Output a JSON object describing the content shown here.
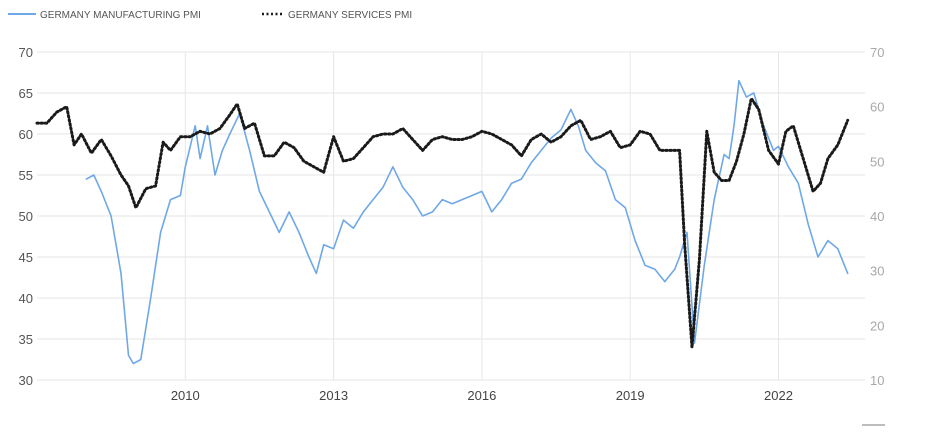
{
  "chart_data": {
    "type": "line",
    "legend": {
      "placement": "top-left",
      "items": [
        {
          "label": "GERMANY MANUFACTURING PMI",
          "color": "#6fa8e8",
          "style": "solid"
        },
        {
          "label": "GERMANY SERVICES PMI",
          "color": "#1a1a1a",
          "style": "dotted"
        }
      ]
    },
    "x_ticks": [
      "2010",
      "2013",
      "2016",
      "2019",
      "2022"
    ],
    "xlim": [
      2007.0,
      2023.75
    ],
    "y_left": {
      "ticks": [
        "70",
        "65",
        "60",
        "55",
        "50",
        "45",
        "40",
        "35",
        "30"
      ],
      "range": [
        30,
        70
      ]
    },
    "y_right": {
      "ticks": [
        "70",
        "60",
        "50",
        "40",
        "30",
        "20",
        "10"
      ],
      "range": [
        10,
        70
      ]
    },
    "grid": "horizontal",
    "series": [
      {
        "name": "GERMANY MANUFACTURING PMI",
        "axis": "left",
        "color": "#6fa8e8",
        "style": "solid",
        "x": [
          2008.0,
          2008.15,
          2008.3,
          2008.5,
          2008.7,
          2008.85,
          2008.95,
          2009.1,
          2009.3,
          2009.5,
          2009.7,
          2009.9,
          2010.0,
          2010.2,
          2010.3,
          2010.45,
          2010.6,
          2010.75,
          2010.9,
          2011.1,
          2011.3,
          2011.5,
          2011.7,
          2011.9,
          2012.1,
          2012.3,
          2012.5,
          2012.65,
          2012.8,
          2013.0,
          2013.2,
          2013.4,
          2013.6,
          2013.8,
          2014.0,
          2014.2,
          2014.4,
          2014.6,
          2014.8,
          2015.0,
          2015.2,
          2015.4,
          2015.6,
          2015.8,
          2016.0,
          2016.2,
          2016.4,
          2016.6,
          2016.8,
          2017.0,
          2017.2,
          2017.4,
          2017.6,
          2017.8,
          2017.95,
          2018.1,
          2018.3,
          2018.5,
          2018.7,
          2018.9,
          2019.1,
          2019.3,
          2019.5,
          2019.7,
          2019.9,
          2020.0,
          2020.15,
          2020.3,
          2020.5,
          2020.7,
          2020.9,
          2021.0,
          2021.1,
          2021.2,
          2021.35,
          2021.5,
          2021.7,
          2021.9,
          2022.0,
          2022.2,
          2022.4,
          2022.6,
          2022.8,
          2023.0,
          2023.2,
          2023.4
        ],
        "y": [
          54.5,
          55.0,
          53.0,
          50.0,
          43.0,
          33.0,
          32.0,
          32.5,
          40.0,
          48.0,
          52.0,
          52.5,
          56.0,
          61.0,
          57.0,
          61.0,
          55.0,
          58.0,
          60.0,
          62.5,
          58.0,
          53.0,
          50.5,
          48.0,
          50.5,
          48.0,
          45.0,
          43.0,
          46.5,
          46.0,
          49.5,
          48.5,
          50.5,
          52.0,
          53.5,
          56.0,
          53.5,
          52.0,
          50.0,
          50.5,
          52.0,
          51.5,
          52.0,
          52.5,
          53.0,
          50.5,
          52.0,
          54.0,
          54.5,
          56.5,
          58.0,
          59.5,
          60.5,
          63.0,
          61.0,
          58.0,
          56.5,
          55.5,
          52.0,
          51.0,
          47.0,
          44.0,
          43.5,
          42.0,
          43.5,
          45.0,
          48.0,
          34.5,
          44.0,
          52.0,
          57.5,
          57.0,
          61.0,
          66.5,
          64.5,
          65.0,
          61.0,
          58.0,
          58.5,
          56.0,
          54.0,
          49.0,
          45.0,
          47.0,
          46.0,
          43.0
        ]
      },
      {
        "name": "GERMANY SERVICES PMI",
        "axis": "right",
        "color": "#1a1a1a",
        "style": "dotted",
        "x": [
          2007.0,
          2007.2,
          2007.4,
          2007.6,
          2007.75,
          2007.9,
          2008.1,
          2008.3,
          2008.5,
          2008.7,
          2008.85,
          2009.0,
          2009.2,
          2009.4,
          2009.55,
          2009.7,
          2009.9,
          2010.1,
          2010.3,
          2010.5,
          2010.7,
          2010.9,
          2011.05,
          2011.2,
          2011.4,
          2011.6,
          2011.8,
          2012.0,
          2012.2,
          2012.4,
          2012.6,
          2012.8,
          2013.0,
          2013.2,
          2013.4,
          2013.6,
          2013.8,
          2014.0,
          2014.2,
          2014.4,
          2014.6,
          2014.8,
          2015.0,
          2015.2,
          2015.4,
          2015.6,
          2015.8,
          2016.0,
          2016.2,
          2016.4,
          2016.6,
          2016.8,
          2017.0,
          2017.2,
          2017.4,
          2017.6,
          2017.8,
          2018.0,
          2018.2,
          2018.4,
          2018.6,
          2018.8,
          2019.0,
          2019.2,
          2019.4,
          2019.6,
          2019.8,
          2020.0,
          2020.1,
          2020.25,
          2020.4,
          2020.55,
          2020.7,
          2020.85,
          2021.0,
          2021.15,
          2021.3,
          2021.45,
          2021.6,
          2021.8,
          2022.0,
          2022.15,
          2022.3,
          2022.5,
          2022.7,
          2022.85,
          2023.0,
          2023.2,
          2023.4
        ],
        "y": [
          57.0,
          57.0,
          59.0,
          60.0,
          53.0,
          55.0,
          51.5,
          54.0,
          51.0,
          47.5,
          45.5,
          41.5,
          45.0,
          45.5,
          53.5,
          52.0,
          54.5,
          54.5,
          55.5,
          55.0,
          56.0,
          58.5,
          60.5,
          56.0,
          57.0,
          51.0,
          51.0,
          53.5,
          52.5,
          50.0,
          49.0,
          48.0,
          54.5,
          50.0,
          50.5,
          52.5,
          54.5,
          55.0,
          55.0,
          56.0,
          54.0,
          52.0,
          54.0,
          54.5,
          54.0,
          54.0,
          54.5,
          55.5,
          55.0,
          54.0,
          53.0,
          51.0,
          54.0,
          55.0,
          53.5,
          54.5,
          56.5,
          57.5,
          54.0,
          54.5,
          55.5,
          52.5,
          53.0,
          55.5,
          55.0,
          52.0,
          52.0,
          52.0,
          35.0,
          16.0,
          32.0,
          55.5,
          48.0,
          46.5,
          46.5,
          50.0,
          55.0,
          61.5,
          59.5,
          52.0,
          49.5,
          55.5,
          56.5,
          50.5,
          44.5,
          46.0,
          50.5,
          53.0,
          57.5
        ]
      }
    ]
  }
}
